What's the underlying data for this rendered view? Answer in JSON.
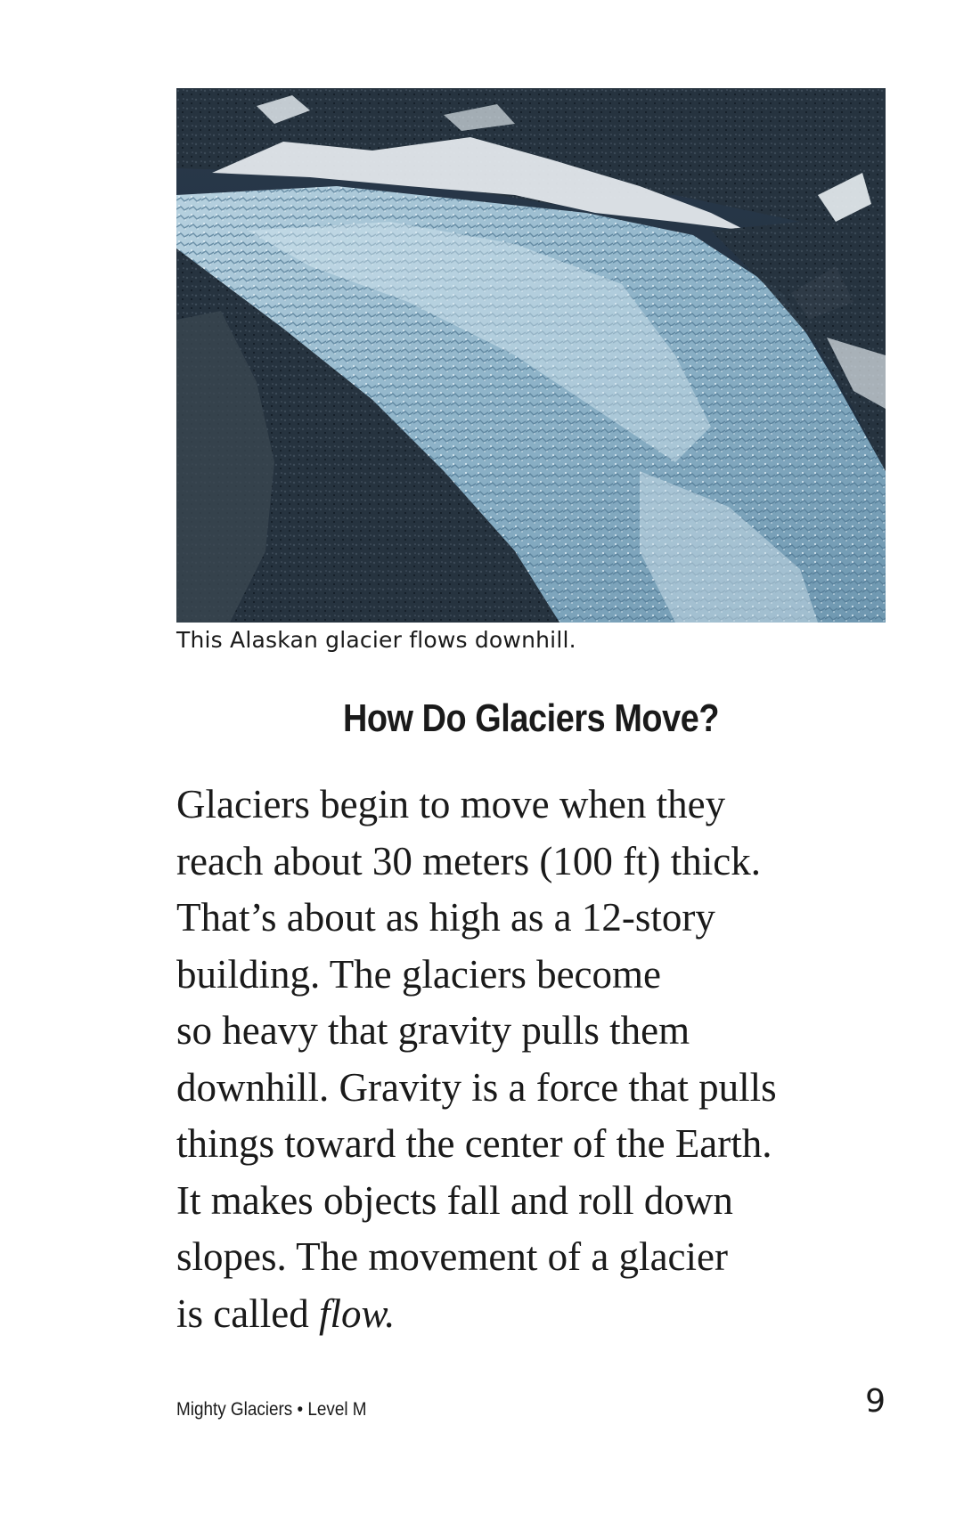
{
  "figure": {
    "caption": "This Alaskan glacier flows downhill."
  },
  "heading": "How Do Glaciers Move?",
  "body": {
    "lines": [
      "Glaciers begin to move when they",
      "reach about 30 meters (100 ft) thick.",
      "That’s about as high as a 12-story",
      "building. The glaciers become",
      "so heavy that gravity pulls them",
      "downhill. Gravity is a force that pulls",
      "things toward the center of the Earth.",
      "It makes objects fall and roll down",
      "slopes. The movement of a glacier"
    ],
    "last_line_prefix": "is called ",
    "last_line_term": "flow."
  },
  "footer": {
    "book_info": "Mighty Glaciers • Level M",
    "page_number": "9"
  }
}
